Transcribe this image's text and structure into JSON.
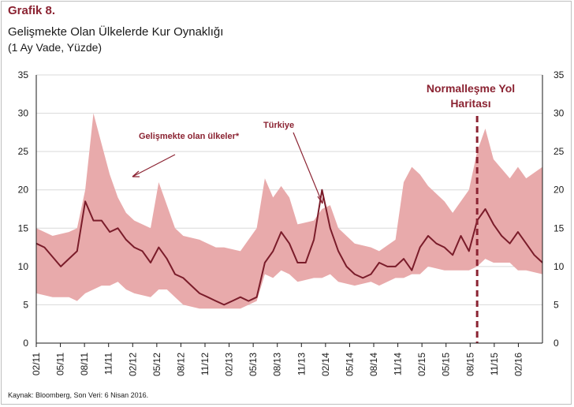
{
  "header": {
    "title": "Grafik 8.",
    "subtitle": "Gelişmekte Olan Ülkelerde Kur Oynaklığı",
    "subtitle2": "(1 Ay Vade, Yüzde)"
  },
  "footer": {
    "source": "Kaynak: Bloomberg, Son Veri: 6 Nisan 2016."
  },
  "colors": {
    "band": "#e8aaab",
    "line": "#7a1c2a",
    "annotation": "#8b2332",
    "axis": "#1a1a1a",
    "grid": "#d9d9d9"
  },
  "chart_data": {
    "type": "area",
    "title": "Gelişmekte Olan Ülkelerde Kur Oynaklığı",
    "subtitle": "(1 Ay Vade, Yüzde)",
    "xlabel": "",
    "ylabel": "",
    "ylim": [
      0,
      35
    ],
    "yticks": [
      0,
      5,
      10,
      15,
      20,
      25,
      30,
      35
    ],
    "grid": true,
    "x_tick_labels": [
      "02/11",
      "05/11",
      "08/11",
      "11/11",
      "02/12",
      "05/12",
      "08/12",
      "11/12",
      "02/13",
      "05/13",
      "08/13",
      "11/13",
      "02/14",
      "05/14",
      "08/14",
      "11/14",
      "02/15",
      "05/15",
      "08/15",
      "11/15",
      "02/16"
    ],
    "x_start": "2011-02",
    "x_end": "2016-04",
    "series": [
      {
        "name": "Gelişmekte olan ülkeler*",
        "kind": "band",
        "x": [
          "2011-02",
          "2011-04",
          "2011-06",
          "2011-07",
          "2011-08",
          "2011-09",
          "2011-10",
          "2011-11",
          "2011-12",
          "2012-01",
          "2012-02",
          "2012-04",
          "2012-05",
          "2012-06",
          "2012-07",
          "2012-08",
          "2012-10",
          "2012-12",
          "2013-01",
          "2013-03",
          "2013-05",
          "2013-06",
          "2013-07",
          "2013-08",
          "2013-09",
          "2013-10",
          "2013-12",
          "2014-01",
          "2014-02",
          "2014-03",
          "2014-05",
          "2014-07",
          "2014-08",
          "2014-10",
          "2014-11",
          "2014-12",
          "2015-01",
          "2015-02",
          "2015-04",
          "2015-05",
          "2015-07",
          "2015-08",
          "2015-09",
          "2015-10",
          "2015-12",
          "2016-01",
          "2016-02",
          "2016-04"
        ],
        "low": [
          6.5,
          6.0,
          6.0,
          5.5,
          6.5,
          7.0,
          7.5,
          7.5,
          8.0,
          7.0,
          6.5,
          6.0,
          7.0,
          7.0,
          6.0,
          5.0,
          4.5,
          4.5,
          4.5,
          4.5,
          5.5,
          9.0,
          8.5,
          9.5,
          9.0,
          8.0,
          8.5,
          8.5,
          9.0,
          8.0,
          7.5,
          8.0,
          7.5,
          8.5,
          8.5,
          9.0,
          9.0,
          10.0,
          9.5,
          9.5,
          9.5,
          10.0,
          11.0,
          10.5,
          10.5,
          9.5,
          9.5,
          9.0
        ],
        "high": [
          15.0,
          14.0,
          14.5,
          15.0,
          20.0,
          30.0,
          26.0,
          22.0,
          19.0,
          17.0,
          16.0,
          15.0,
          21.0,
          18.0,
          15.0,
          14.0,
          13.5,
          12.5,
          12.5,
          12.0,
          15.0,
          21.5,
          19.0,
          20.5,
          19.0,
          15.5,
          16.0,
          17.5,
          18.0,
          15.0,
          13.0,
          12.5,
          12.0,
          13.5,
          21.0,
          23.0,
          22.0,
          20.5,
          18.5,
          17.0,
          20.0,
          25.0,
          28.0,
          24.0,
          21.5,
          23.0,
          21.5,
          23.0
        ]
      },
      {
        "name": "Türkiye",
        "kind": "line",
        "x": [
          "2011-02",
          "2011-03",
          "2011-05",
          "2011-06",
          "2011-07",
          "2011-08",
          "2011-09",
          "2011-10",
          "2011-11",
          "2011-12",
          "2012-01",
          "2012-02",
          "2012-03",
          "2012-04",
          "2012-05",
          "2012-06",
          "2012-07",
          "2012-08",
          "2012-09",
          "2012-10",
          "2012-11",
          "2012-12",
          "2013-01",
          "2013-02",
          "2013-03",
          "2013-04",
          "2013-05",
          "2013-06",
          "2013-07",
          "2013-08",
          "2013-09",
          "2013-10",
          "2013-11",
          "2013-12",
          "2014-01",
          "2014-02",
          "2014-03",
          "2014-04",
          "2014-05",
          "2014-06",
          "2014-07",
          "2014-08",
          "2014-09",
          "2014-10",
          "2014-11",
          "2014-12",
          "2015-01",
          "2015-02",
          "2015-03",
          "2015-04",
          "2015-05",
          "2015-06",
          "2015-07",
          "2015-08",
          "2015-09",
          "2015-10",
          "2015-11",
          "2015-12",
          "2016-01",
          "2016-02",
          "2016-03",
          "2016-04"
        ],
        "values": [
          13.0,
          12.5,
          10.0,
          11.0,
          12.0,
          18.5,
          16.0,
          16.0,
          14.5,
          15.0,
          13.5,
          12.5,
          12.0,
          10.5,
          12.5,
          11.0,
          9.0,
          8.5,
          7.5,
          6.5,
          6.0,
          5.5,
          5.0,
          5.5,
          6.0,
          5.5,
          6.0,
          10.5,
          12.0,
          14.5,
          13.0,
          10.5,
          10.5,
          13.5,
          20.0,
          15.0,
          12.0,
          10.0,
          9.0,
          8.5,
          9.0,
          10.5,
          10.0,
          10.0,
          11.0,
          9.5,
          12.5,
          14.0,
          13.0,
          12.5,
          11.5,
          14.0,
          12.0,
          16.0,
          17.5,
          15.5,
          14.0,
          13.0,
          14.5,
          13.0,
          11.5,
          10.5
        ]
      }
    ],
    "annotations": [
      {
        "text": "Gelişmekte olan ülkeler*"
      },
      {
        "text": "Türkiye"
      },
      {
        "text_line1": "Normalleşme Yol",
        "text_line2": "Haritası",
        "date": "2015-08"
      }
    ]
  }
}
